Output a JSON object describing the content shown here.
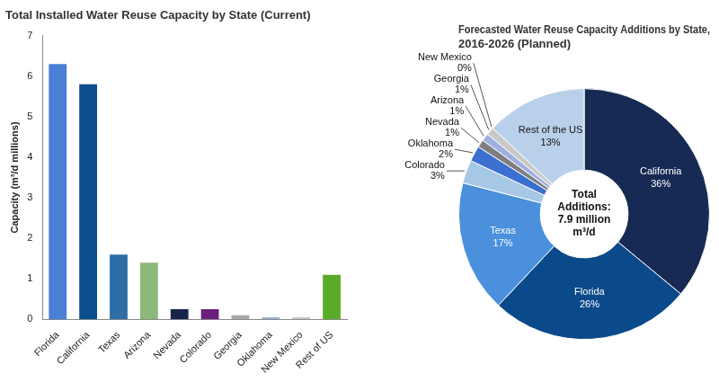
{
  "chart_data": [
    {
      "type": "bar",
      "title": "Total Installed Water Reuse Capacity by State (Current)",
      "y_label": "Capacity (m³/d millions)",
      "categories": [
        "Florida",
        "California",
        "Texas",
        "Arizona",
        "Nevada",
        "Colorado",
        "Georgia",
        "Oklahoma",
        "New Mexico",
        "Rest of US"
      ],
      "values": [
        6.3,
        5.8,
        1.6,
        1.4,
        0.25,
        0.25,
        0.1,
        0.05,
        0.05,
        1.1
      ],
      "colors": [
        "#4a7fd6",
        "#0b4f8c",
        "#2e6ea6",
        "#8cb87a",
        "#17254a",
        "#6b1f7a",
        "#a6a6a6",
        "#9aaed0",
        "#c4c4c4",
        "#5aab2a"
      ],
      "ylim": [
        0,
        7
      ],
      "yticks": [
        0,
        1,
        2,
        3,
        4,
        5,
        6,
        7
      ],
      "grid": false
    },
    {
      "type": "doughnut",
      "title": [
        "Forecasted Water Reuse Capacity Additions by State,",
        "2016-2026 (Planned)"
      ],
      "center_text": [
        "Total",
        "Additions:",
        "7.9 million",
        "m³/d"
      ],
      "categories": [
        "California",
        "Florida",
        "Texas",
        "Colorado",
        "Oklahoma",
        "Nevada",
        "Arizona",
        "Georgia",
        "New Mexico",
        "Rest of the US"
      ],
      "values": [
        36,
        26,
        17,
        3,
        2,
        1,
        1,
        1,
        0,
        13
      ],
      "value_labels": [
        "36%",
        "26%",
        "17%",
        "3%",
        "2%",
        "1%",
        "1%",
        "1%",
        "0%",
        "13%"
      ],
      "colors": [
        "#172a54",
        "#0b4a8a",
        "#4a90dc",
        "#a7c7e7",
        "#3b6fd0",
        "#7f7f7f",
        "#9fb0e0",
        "#c8c8c8",
        "#a8c080",
        "#b9d0ea"
      ],
      "data_labels": true
    }
  ]
}
